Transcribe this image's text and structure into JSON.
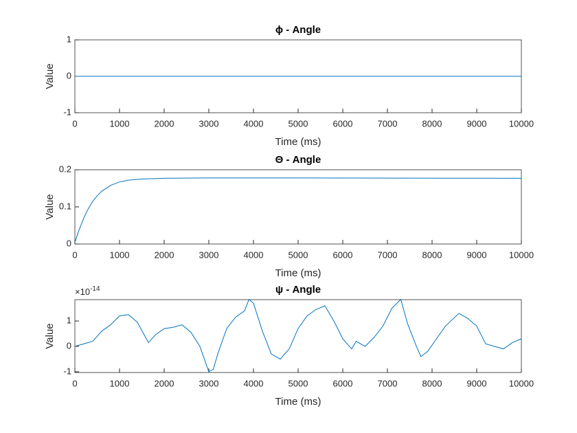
{
  "chart_data": [
    {
      "type": "line",
      "title": "ϕ - Angle",
      "x_label": "Time (ms)",
      "y_label": "Value",
      "x": [
        0,
        10000
      ],
      "series": [
        {
          "color": "#0072bd",
          "values": [
            0,
            0
          ]
        }
      ],
      "xlim": [
        0,
        10000
      ],
      "xticks": [
        0,
        1000,
        2000,
        3000,
        4000,
        5000,
        6000,
        7000,
        8000,
        9000,
        10000
      ],
      "ylim": [
        -1,
        1
      ],
      "yticks": [
        -1,
        0,
        1
      ]
    },
    {
      "type": "line",
      "title": "Θ - Angle",
      "x_label": "Time (ms)",
      "y_label": "Value",
      "x": [
        0,
        100,
        200,
        300,
        400,
        500,
        600,
        800,
        1000,
        1200,
        1500,
        2000,
        3000,
        5000,
        10000
      ],
      "series": [
        {
          "color": "#0072bd",
          "values": [
            0.005,
            0.04,
            0.07,
            0.095,
            0.115,
            0.13,
            0.142,
            0.158,
            0.167,
            0.172,
            0.175,
            0.177,
            0.178,
            0.178,
            0.177
          ]
        }
      ],
      "xlim": [
        0,
        10000
      ],
      "xticks": [
        0,
        1000,
        2000,
        3000,
        4000,
        5000,
        6000,
        7000,
        8000,
        9000,
        10000
      ],
      "ylim": [
        0,
        0.2
      ],
      "yticks": [
        0,
        0.1,
        0.2
      ]
    },
    {
      "type": "line",
      "title": "ψ - Angle",
      "x_label": "Time (ms)",
      "y_label": "Value",
      "y_multiplier": {
        "base": "×10",
        "exponent": "-14"
      },
      "x": [
        0,
        200,
        400,
        600,
        800,
        1000,
        1200,
        1400,
        1600,
        1650,
        1800,
        2000,
        2200,
        2400,
        2600,
        2800,
        3000,
        3100,
        3200,
        3400,
        3600,
        3800,
        3900,
        4000,
        4200,
        4400,
        4600,
        4800,
        5000,
        5200,
        5400,
        5600,
        5800,
        6000,
        6200,
        6300,
        6500,
        6700,
        6900,
        7100,
        7300,
        7450,
        7650,
        7750,
        7900,
        8100,
        8300,
        8600,
        8800,
        9000,
        9200,
        9400,
        9600,
        9800,
        10000
      ],
      "series": [
        {
          "color": "#0072bd",
          "values": [
            0,
            1e-15,
            2e-15,
            6e-15,
            8.5e-15,
            1.2e-14,
            1.25e-14,
            9.5e-15,
            3e-15,
            1.5e-15,
            4.5e-15,
            7e-15,
            7.5e-15,
            8.5e-15,
            5.5e-15,
            0,
            -1e-14,
            -9e-15,
            -3e-15,
            7e-15,
            1.15e-14,
            1.4e-14,
            1.85e-14,
            1.7e-14,
            6e-15,
            -3e-15,
            -5e-15,
            -1e-15,
            7e-15,
            1.2e-14,
            1.45e-14,
            1.6e-14,
            1e-14,
            3e-15,
            -1e-15,
            2e-15,
            0,
            3.5e-15,
            8e-15,
            1.5e-14,
            1.85e-14,
            9e-15,
            0,
            -4e-15,
            -2e-15,
            3e-15,
            8e-15,
            1.3e-14,
            1.1e-14,
            8e-15,
            1e-15,
            0,
            -1e-15,
            1.5e-15,
            3e-15
          ]
        }
      ],
      "xlim": [
        0,
        10000
      ],
      "xticks": [
        0,
        1000,
        2000,
        3000,
        4000,
        5000,
        6000,
        7000,
        8000,
        9000,
        10000
      ],
      "ylim": [
        -1.03e-14,
        1.84e-14
      ],
      "yticks": [
        {
          "value": -1e-14,
          "label": "-1"
        },
        {
          "value": 0,
          "label": "0"
        },
        {
          "value": 1e-14,
          "label": "1"
        }
      ]
    }
  ]
}
